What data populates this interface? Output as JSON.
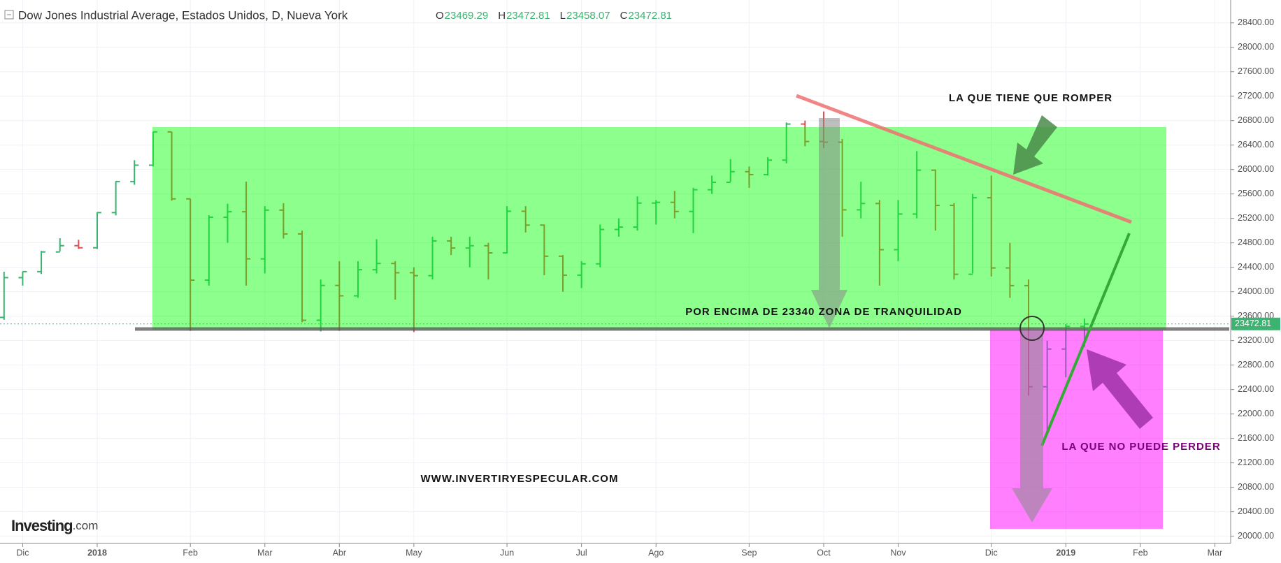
{
  "chart_data": {
    "type": "ohlc",
    "title": "Dow Jones Industrial Average, Estados Unidos, D, Nueva York",
    "legend": [
      {
        "label": "O",
        "value": 23469.29
      },
      {
        "label": "H",
        "value": 23472.81
      },
      {
        "label": "L",
        "value": 23458.07
      },
      {
        "label": "C",
        "value": 23472.81
      }
    ],
    "categories": [
      null,
      "Dic",
      null,
      null,
      null,
      "2018",
      null,
      null,
      null,
      null,
      "Feb",
      null,
      null,
      null,
      "Mar",
      null,
      null,
      null,
      "Abr",
      null,
      null,
      null,
      "May",
      null,
      null,
      null,
      null,
      "Jun",
      null,
      null,
      null,
      "Jul",
      null,
      null,
      null,
      "Ago",
      null,
      null,
      null,
      null,
      "Sep",
      null,
      null,
      null,
      "Oct",
      null,
      null,
      null,
      "Nov",
      null,
      null,
      null,
      null,
      "Dic",
      null,
      null,
      null,
      "2019",
      null,
      null,
      null,
      "Feb",
      null,
      null,
      null,
      "Mar",
      null
    ],
    "open": [
      23580,
      24231,
      24329,
      24651,
      24754,
      24719,
      25295,
      25803,
      26071,
      26616,
      25520,
      24190,
      25219,
      25309,
      24538,
      25336,
      24946,
      23533,
      24103,
      23933,
      24360,
      24463,
      24311,
      24263,
      24831,
      24715,
      24753,
      24635,
      25317,
      25090,
      24581,
      24271,
      24456,
      25019,
      25058,
      25451,
      25463,
      25313,
      25669,
      25790,
      25965,
      25917,
      26154,
      26744,
      26458,
      26447,
      25340,
      25444,
      24688,
      25271,
      25989,
      25413,
      24286,
      25538,
      24389,
      24100,
      22445,
      23062,
      23433,
      null,
      null,
      null,
      null,
      null,
      null,
      null,
      null
    ],
    "high": [
      24327,
      24330,
      24669,
      24876,
      24850,
      25300,
      25810,
      26153,
      26617,
      26617,
      25520,
      25250,
      25440,
      25800,
      25400,
      25450,
      25000,
      24200,
      24500,
      24500,
      24860,
      24500,
      24400,
      24900,
      24900,
      24900,
      24800,
      25400,
      25400,
      25100,
      24600,
      24500,
      25100,
      25200,
      25560,
      25500,
      25650,
      25700,
      25900,
      26170,
      26050,
      26200,
      26770,
      26800,
      26950,
      26500,
      25800,
      25500,
      25500,
      26300,
      26000,
      25450,
      25600,
      25900,
      24800,
      24200,
      23200,
      23470,
      23560,
      null,
      null,
      null,
      null,
      null,
      null,
      null,
      null
    ],
    "low": [
      23540,
      24100,
      24290,
      24660,
      24700,
      24700,
      25250,
      25750,
      26050,
      25490,
      23360,
      24100,
      24800,
      24100,
      24300,
      24870,
      23500,
      23350,
      23360,
      23900,
      24300,
      23870,
      23340,
      24200,
      24600,
      24400,
      24200,
      24630,
      24970,
      24270,
      24000,
      24060,
      24400,
      24900,
      25000,
      25100,
      25200,
      24960,
      25600,
      25800,
      25700,
      25900,
      26100,
      26380,
      26350,
      24900,
      25200,
      24100,
      24500,
      25200,
      25000,
      24200,
      24300,
      24250,
      23900,
      22300,
      21710,
      22600,
      23100,
      null,
      null,
      null,
      null,
      null,
      null,
      null,
      null
    ],
    "close": [
      24231,
      24329,
      24651,
      24754,
      24719,
      25295,
      25803,
      26071,
      26616,
      25520,
      24190,
      25219,
      25309,
      24538,
      25336,
      24946,
      23533,
      24103,
      23933,
      24360,
      24463,
      24311,
      24263,
      24831,
      24715,
      24753,
      24635,
      25317,
      25090,
      24581,
      24271,
      24456,
      25019,
      25058,
      25451,
      25463,
      25313,
      25669,
      25790,
      25965,
      25917,
      26154,
      26744,
      26458,
      26447,
      25340,
      25444,
      24688,
      25271,
      25989,
      25413,
      24286,
      25538,
      24389,
      24100,
      22445,
      23062,
      23433,
      23472.81,
      null,
      null,
      null,
      null,
      null,
      null,
      null,
      null
    ],
    "up_color": "#3cb371",
    "down_color": "#e05050",
    "ylim": [
      19881,
      28774
    ],
    "yticks": [
      {
        "value": 20000,
        "label": "20000.00"
      },
      {
        "value": 20400,
        "label": "20400.00"
      },
      {
        "value": 20800,
        "label": "20800.00"
      },
      {
        "value": 21200,
        "label": "21200.00"
      },
      {
        "value": 21600,
        "label": "21600.00"
      },
      {
        "value": 22000,
        "label": "22000.00"
      },
      {
        "value": 22400,
        "label": "22400.00"
      },
      {
        "value": 22800,
        "label": "22800.00"
      },
      {
        "value": 23200,
        "label": "23200.00"
      },
      {
        "value": 23600,
        "label": "23600.00"
      },
      {
        "value": 24000,
        "label": "24000.00"
      },
      {
        "value": 24400,
        "label": "24400.00"
      },
      {
        "value": 24800,
        "label": "24800.00"
      },
      {
        "value": 25200,
        "label": "25200.00"
      },
      {
        "value": 25600,
        "label": "25600.00"
      },
      {
        "value": 26000,
        "label": "26000.00"
      },
      {
        "value": 26400,
        "label": "26400.00"
      },
      {
        "value": 26800,
        "label": "26800.00"
      },
      {
        "value": 27200,
        "label": "27200.00"
      },
      {
        "value": 27600,
        "label": "27600.00"
      },
      {
        "value": 28000,
        "label": "28000.00"
      },
      {
        "value": 28400,
        "label": "28400.00"
      }
    ],
    "grid": true,
    "annotations": {
      "resistance": "LA QUE TIENE QUE ROMPER",
      "zone": "POR ENCIMA DE 23340 ZONA DE TRANQUILIDAD",
      "support": "LA QUE NO PUEDE PERDER",
      "website": "WWW.INVERTIRYESPECULAR.COM"
    },
    "logo": {
      "brand": "Investing",
      "suffix": ".com"
    }
  }
}
